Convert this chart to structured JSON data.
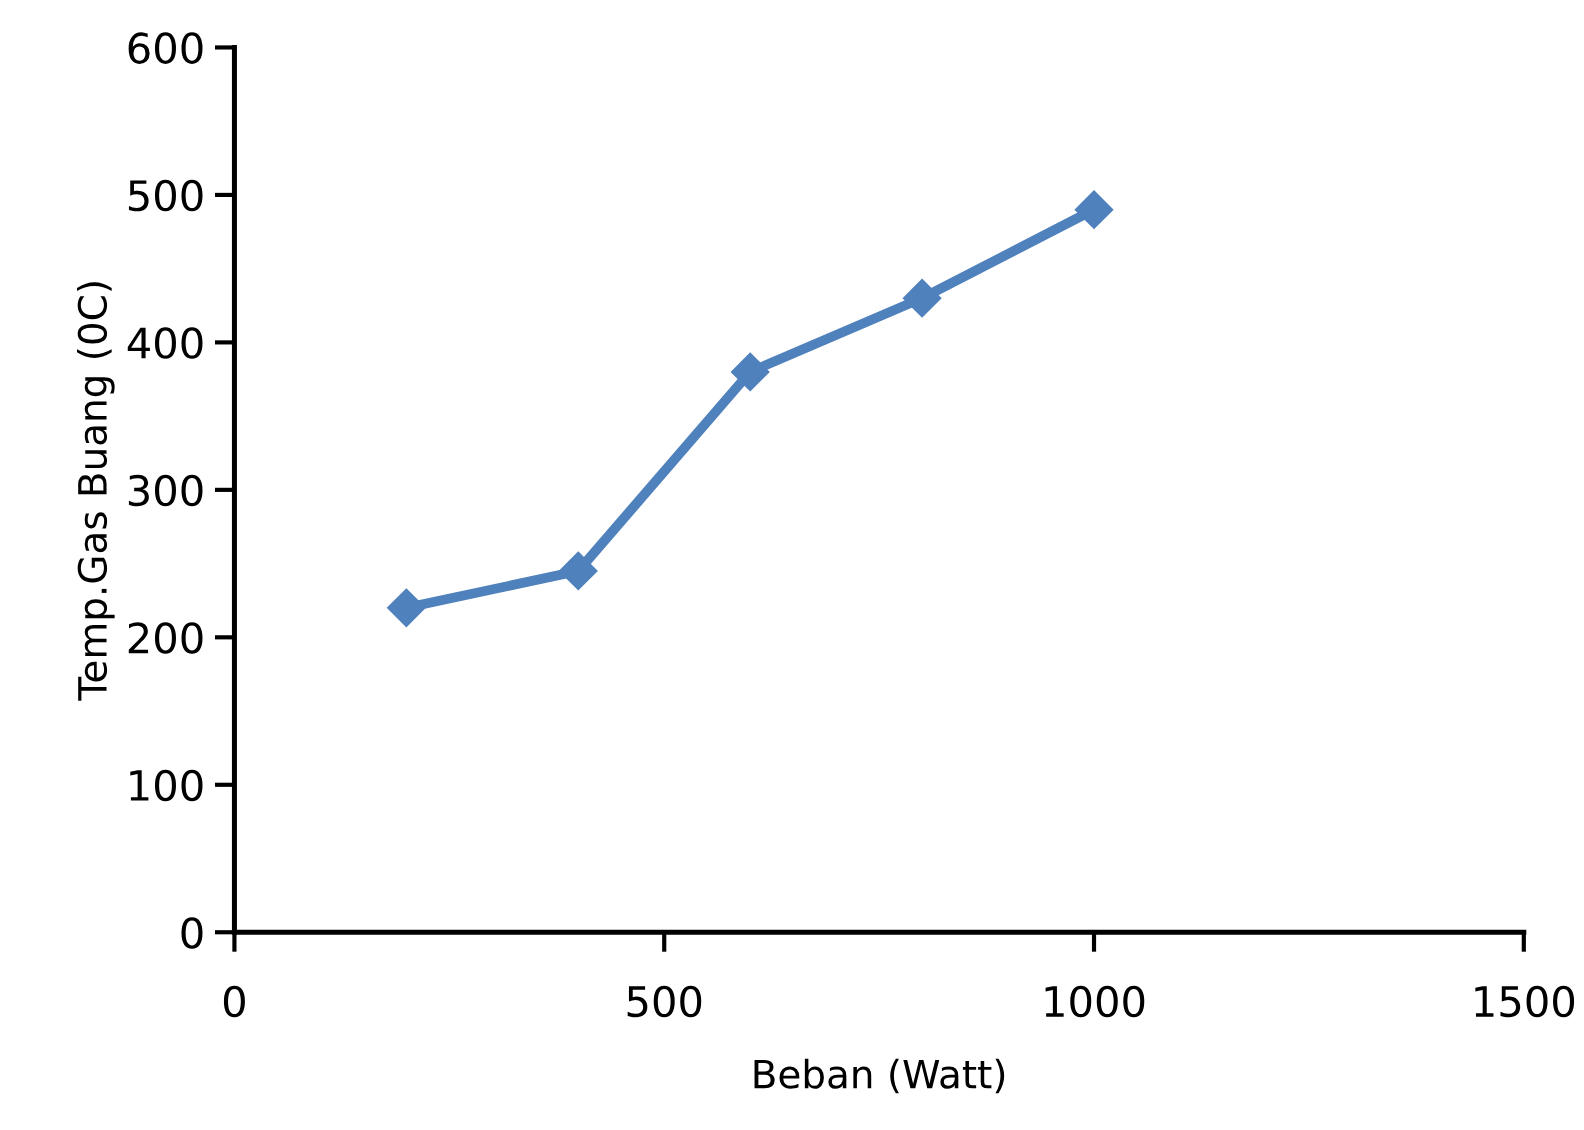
{
  "chart_data": {
    "type": "line",
    "xlabel": "Beban (Watt)",
    "ylabel": "Temp.Gas Buang (0C)",
    "x": [
      200,
      400,
      600,
      800,
      1000
    ],
    "series": [
      {
        "color": "#4f81bd",
        "values": [
          220,
          245,
          380,
          430,
          490
        ]
      }
    ],
    "xlim": [
      0,
      1500
    ],
    "xticks": [
      0,
      500,
      1000,
      1500
    ],
    "ylim": [
      0,
      600
    ],
    "yticks": [
      0,
      100,
      200,
      300,
      400,
      500,
      600
    ],
    "grid": false,
    "legend": false,
    "marker": "diamond",
    "line_style": "solid"
  }
}
